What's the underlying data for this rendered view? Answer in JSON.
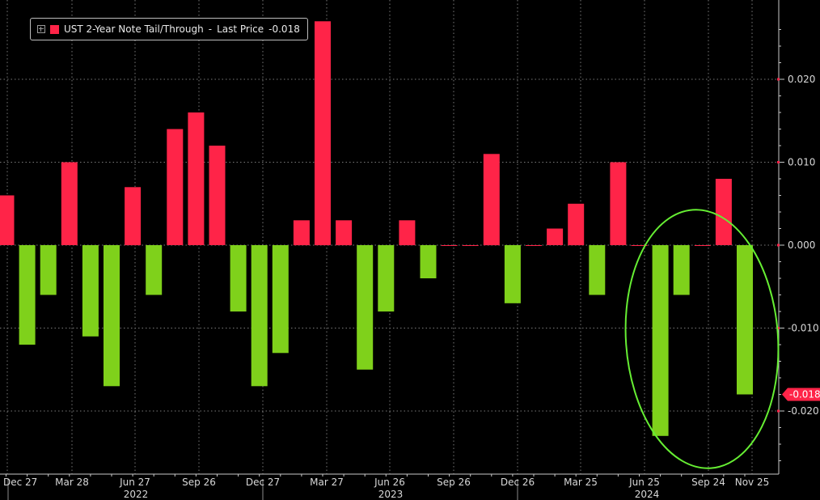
{
  "chart_data": {
    "type": "bar",
    "title": "",
    "xlabel": "",
    "ylabel": "",
    "ylim": [
      -0.0275,
      0.0275
    ],
    "series": [
      {
        "name": "UST 2-Year Note Tail/Through",
        "last_price_label": "Last Price",
        "last_price_value": "-0.018",
        "last_price_tag": "-0.018",
        "values": [
          0.006,
          -0.012,
          -0.006,
          0.01,
          -0.011,
          -0.017,
          0.007,
          -0.006,
          0.014,
          0.016,
          0.012,
          -0.008,
          -0.017,
          -0.013,
          0.003,
          0.027,
          0.003,
          -0.015,
          -0.008,
          0.003,
          -0.004,
          0.0,
          0.0,
          0.011,
          -0.007,
          0.0,
          0.002,
          0.005,
          -0.006,
          0.01,
          0.0,
          -0.023,
          -0.006,
          0.0,
          0.008,
          -0.018
        ]
      }
    ],
    "x_tick_labels": [
      "Dec 27",
      "Mar 28",
      "Jun 27",
      "Sep 26",
      "Dec 27",
      "Mar 27",
      "Jun 26",
      "Sep 26",
      "Dec 26",
      "Mar 25",
      "Jun 25",
      "Sep 24",
      "Nov 25"
    ],
    "year_labels": [
      "2022",
      "2023",
      "2024"
    ],
    "y_tick_labels": [
      "0.020",
      "0.010",
      "0.000",
      "-0.010",
      "-0.020"
    ],
    "y_ticks": [
      0.02,
      0.01,
      0.0,
      -0.01,
      -0.02
    ],
    "colors": {
      "positive": "#ff2448",
      "negative": "#7fd11b",
      "background": "#000000",
      "grid": "#7a7a7a",
      "axis_text": "#d8d8d8",
      "highlight_ellipse": "#66ee33",
      "last_price_tag": "#ff2448"
    },
    "grid": true,
    "legend_position": "top-left",
    "annotation": "green ellipse highlighting the last four auctions"
  }
}
